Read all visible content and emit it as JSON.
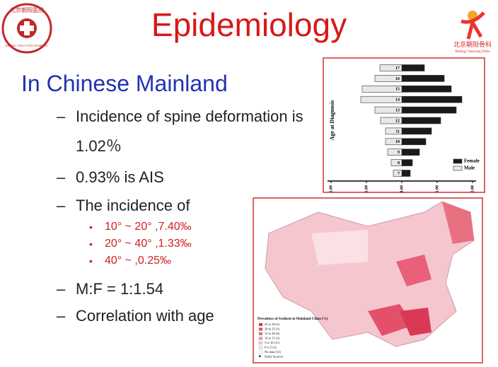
{
  "logo_left": {
    "name": "北京朝阳医院",
    "subtitle": "BEIJING CHAO-YANG HOSPITAL"
  },
  "logo_right": {
    "name": "北京朝阳骨科",
    "subtitle": "Beijing Chaoyang Ortho"
  },
  "title": "Epidemiology",
  "subtitle": "In Chinese Mainland",
  "bullets": [
    {
      "text": "Incidence of spine deformation is 1.02％"
    },
    {
      "text": "0.93% is AIS"
    },
    {
      "text": "The incidence of",
      "sub": [
        "10°  ~ 20°  ,7.40‰",
        "20°  ~ 40°  ,1.33‰",
        "40°  ~          ,0.25‰"
      ]
    },
    {
      "text": "M:F = 1:1.54"
    },
    {
      "text": "Correlation with age"
    }
  ],
  "chart_data": {
    "type": "pyramid",
    "y_label": "Age at Diagnosis",
    "categories": [
      "17",
      "16",
      "15",
      "14",
      "13",
      "12",
      "11",
      "10",
      "9",
      "8",
      "7"
    ],
    "series": [
      {
        "name": "Female",
        "color": "#1a1a1a",
        "values": [
          0.64,
          1.2,
          1.4,
          1.7,
          1.54,
          1.1,
          0.84,
          0.68,
          0.5,
          0.3,
          0.24
        ]
      },
      {
        "name": "Male",
        "color": "#e8e8e8",
        "values": [
          0.62,
          0.76,
          1.12,
          1.16,
          0.76,
          0.6,
          0.46,
          0.46,
          0.4,
          0.3,
          0.24
        ]
      }
    ],
    "xlim": [
      -2,
      2
    ],
    "xticks": [
      {
        "value": -2,
        "label": "2.00"
      },
      {
        "value": -1,
        "label": "1.00"
      },
      {
        "value": 0,
        "label": "0.00"
      },
      {
        "value": 1,
        "label": "1.00"
      },
      {
        "value": 2,
        "label": "2.00"
      }
    ],
    "legend": "lower right"
  },
  "map": {
    "legend_title": "Prevalence of Scoliosis in Mainland China (%)",
    "legend": [
      "25 to 30  (1)",
      "20 to 25  (1)",
      "15 to 20  (4)",
      "10 to 15  (3)",
      "5 to 10  (11)",
      "0 to 5  (2)",
      "No data (12)",
      "Study location"
    ]
  }
}
